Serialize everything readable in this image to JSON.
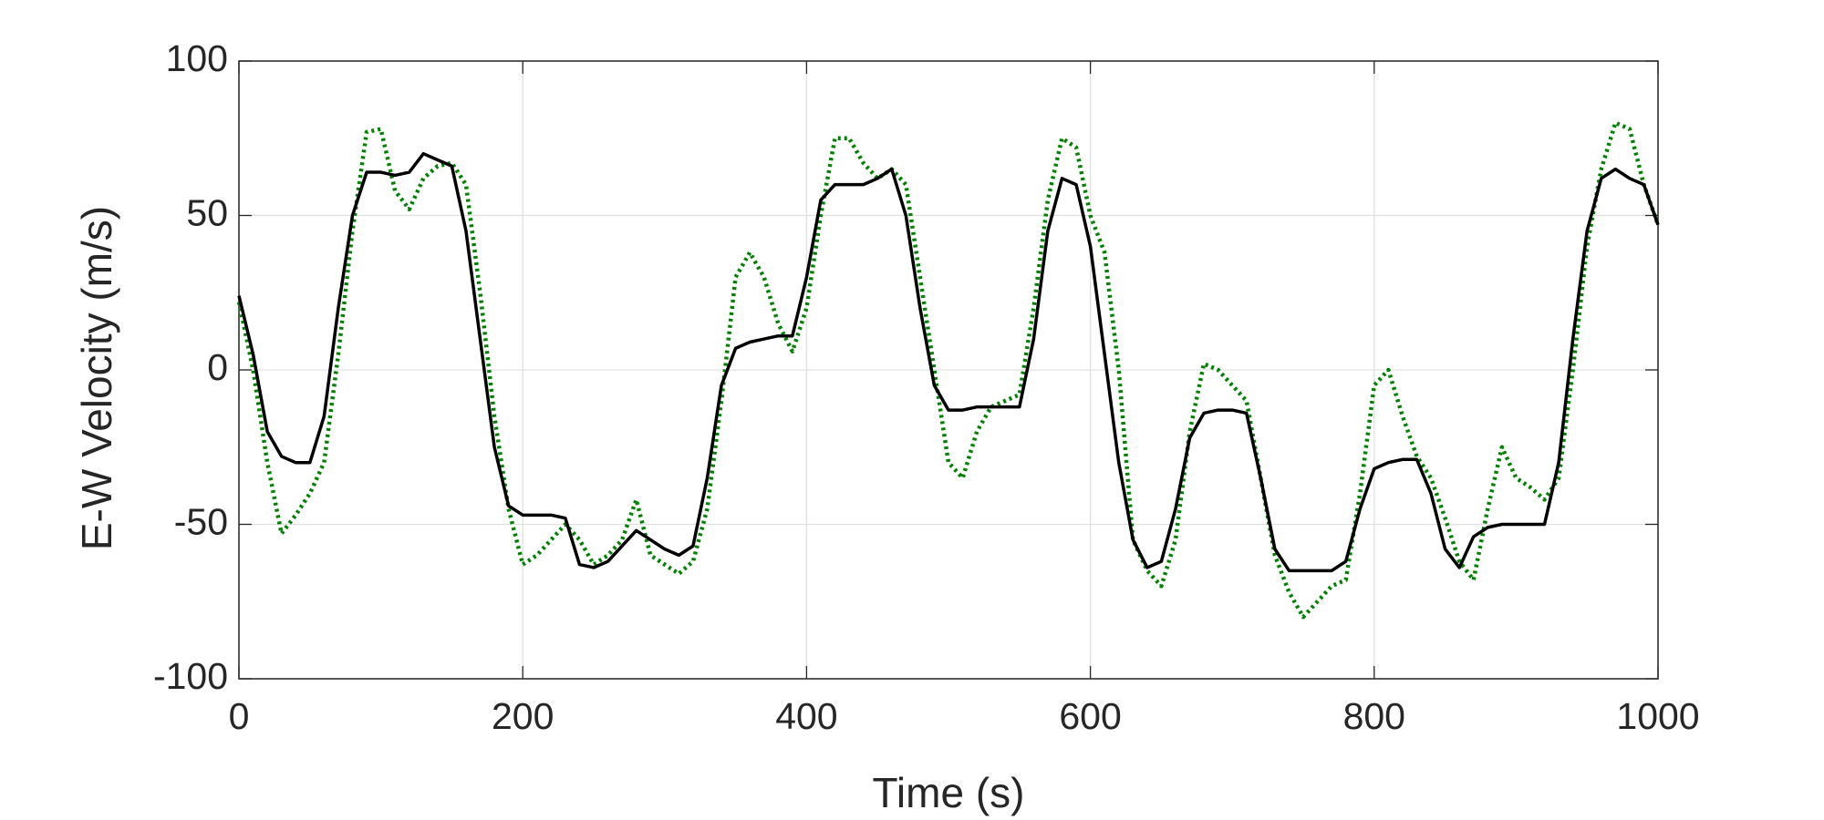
{
  "chart_data": {
    "type": "line",
    "xlabel": "Time (s)",
    "ylabel": "E-W Velocity (m/s)",
    "x": [
      0,
      10,
      20,
      30,
      40,
      50,
      60,
      70,
      80,
      90,
      100,
      110,
      120,
      130,
      140,
      150,
      160,
      170,
      180,
      190,
      200,
      210,
      220,
      230,
      240,
      250,
      260,
      270,
      280,
      290,
      300,
      310,
      320,
      330,
      340,
      350,
      360,
      370,
      380,
      390,
      400,
      410,
      420,
      430,
      440,
      450,
      460,
      470,
      480,
      490,
      500,
      510,
      520,
      530,
      540,
      550,
      560,
      570,
      580,
      590,
      600,
      610,
      620,
      630,
      640,
      650,
      660,
      670,
      680,
      690,
      700,
      710,
      720,
      730,
      740,
      750,
      760,
      770,
      780,
      790,
      800,
      810,
      820,
      830,
      840,
      850,
      860,
      870,
      880,
      890,
      900,
      910,
      920,
      930,
      940,
      950,
      960,
      970,
      980,
      990,
      1000
    ],
    "series": [
      {
        "color": "#000000",
        "dashed": false,
        "values": [
          24,
          5,
          -20,
          -28,
          -30,
          -30,
          -15,
          20,
          50,
          64,
          64,
          63,
          64,
          70,
          68,
          66,
          45,
          10,
          -25,
          -44,
          -47,
          -47,
          -47,
          -48,
          -63,
          -64,
          -62,
          -57,
          -52,
          -55,
          -58,
          -60,
          -57,
          -35,
          -5,
          7,
          9,
          10,
          11,
          11,
          30,
          55,
          60,
          60,
          60,
          62,
          65,
          50,
          20,
          -5,
          -13,
          -13,
          -12,
          -12,
          -12,
          -12,
          10,
          45,
          62,
          60,
          40,
          5,
          -30,
          -55,
          -64,
          -62,
          -45,
          -22,
          -14,
          -13,
          -13,
          -14,
          -35,
          -58,
          -65,
          -65,
          -65,
          -65,
          -62,
          -45,
          -32,
          -30,
          -29,
          -29,
          -40,
          -58,
          -64,
          -54,
          -51,
          -50,
          -50,
          -50,
          -50,
          -30,
          10,
          45,
          62,
          65,
          62,
          60,
          47
        ]
      },
      {
        "color": "#008000",
        "dashed": true,
        "values": [
          22,
          0,
          -30,
          -53,
          -47,
          -40,
          -30,
          5,
          45,
          77,
          78,
          58,
          52,
          62,
          66,
          67,
          60,
          25,
          -15,
          -45,
          -63,
          -60,
          -55,
          -50,
          -55,
          -63,
          -60,
          -55,
          -42,
          -60,
          -63,
          -66,
          -62,
          -45,
          -10,
          30,
          38,
          30,
          15,
          6,
          20,
          50,
          75,
          75,
          67,
          62,
          65,
          60,
          30,
          0,
          -30,
          -35,
          -20,
          -12,
          -10,
          -8,
          20,
          55,
          75,
          72,
          50,
          38,
          0,
          -55,
          -65,
          -70,
          -55,
          -20,
          2,
          0,
          -5,
          -10,
          -35,
          -60,
          -72,
          -80,
          -75,
          -70,
          -68,
          -40,
          -5,
          0,
          -15,
          -28,
          -35,
          -48,
          -62,
          -68,
          -45,
          -25,
          -35,
          -38,
          -42,
          -35,
          0,
          40,
          65,
          80,
          78,
          60,
          47
        ]
      }
    ],
    "xlim": [
      0,
      1000
    ],
    "xticks": [
      0,
      200,
      400,
      600,
      800,
      1000
    ],
    "ylim": [
      -100,
      100
    ],
    "yticks": [
      -100,
      -50,
      0,
      50,
      100
    ],
    "grid": true
  }
}
